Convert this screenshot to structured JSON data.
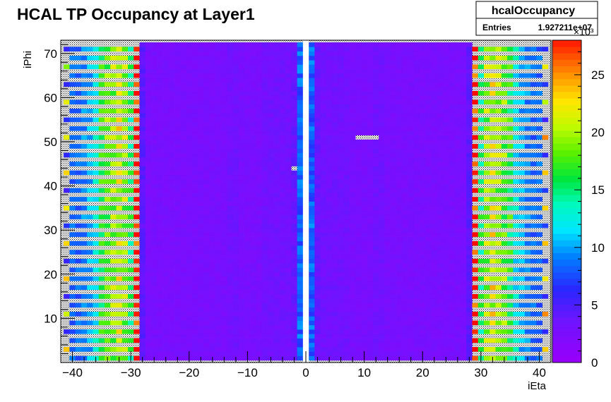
{
  "chart_data": {
    "type": "heatmap",
    "title": "HCAL TP Occupancy at Layer1",
    "xlabel": "iEta",
    "ylabel": "iPhi",
    "xlim": [
      -42,
      42
    ],
    "ylim": [
      0,
      73
    ],
    "x_ticks": [
      -40,
      -30,
      -20,
      -10,
      0,
      10,
      20,
      30,
      40
    ],
    "y_ticks": [
      10,
      20,
      30,
      40,
      50,
      60,
      70
    ],
    "zlim": [
      0,
      28
    ],
    "z_ticks": [
      0,
      5,
      10,
      15,
      20,
      25
    ],
    "z_exponent_label": "×10³",
    "grid": false,
    "stats_box": {
      "name": "hcalOccupancy",
      "entries_label": "Entries",
      "entries_value": "1.927211e+07"
    },
    "bins": {
      "ieta": [
        -41,
        -40,
        -39,
        -38,
        -37,
        -36,
        -35,
        -34,
        -33,
        -32,
        -31,
        -30,
        -29,
        -28,
        -27,
        -26,
        -25,
        -24,
        -23,
        -22,
        -21,
        -20,
        -19,
        -18,
        -17,
        -16,
        -15,
        -14,
        -13,
        -12,
        -11,
        -10,
        -9,
        -8,
        -7,
        -6,
        -5,
        -4,
        -3,
        -2,
        -1,
        1,
        2,
        3,
        4,
        5,
        6,
        7,
        8,
        9,
        10,
        11,
        12,
        13,
        14,
        15,
        16,
        17,
        18,
        19,
        20,
        21,
        22,
        23,
        24,
        25,
        26,
        27,
        28,
        29,
        30,
        31,
        32,
        33,
        34,
        35,
        36,
        37,
        38,
        39,
        40,
        41
      ],
      "iphi_min": 1,
      "iphi_max": 72,
      "forward_phi_step": 2,
      "forward_eta_abs": [
        29,
        41
      ],
      "forward_profile_kilo": [
        29,
        15,
        19,
        21,
        19,
        18,
        16,
        12,
        10,
        9,
        8,
        8,
        6
      ],
      "central_profile_kilo": [
        8,
        3.5,
        3,
        3,
        3,
        3,
        3,
        2.5,
        2.5,
        2.5,
        2.5,
        3,
        3,
        2.5,
        2.5,
        2.5,
        2.5,
        2.5,
        2.5,
        2.5,
        2.5,
        2.5,
        2.5,
        2.5,
        2.5,
        2.5,
        2.5,
        4,
        6.5
      ],
      "empty_cells": [
        {
          "ieta": -2,
          "iphi": 44
        },
        {
          "ieta": 9,
          "iphi": 51
        },
        {
          "ieta": 10,
          "iphi": 51
        },
        {
          "ieta": 11,
          "iphi": 51
        },
        {
          "ieta": 12,
          "iphi": 51
        }
      ]
    }
  }
}
